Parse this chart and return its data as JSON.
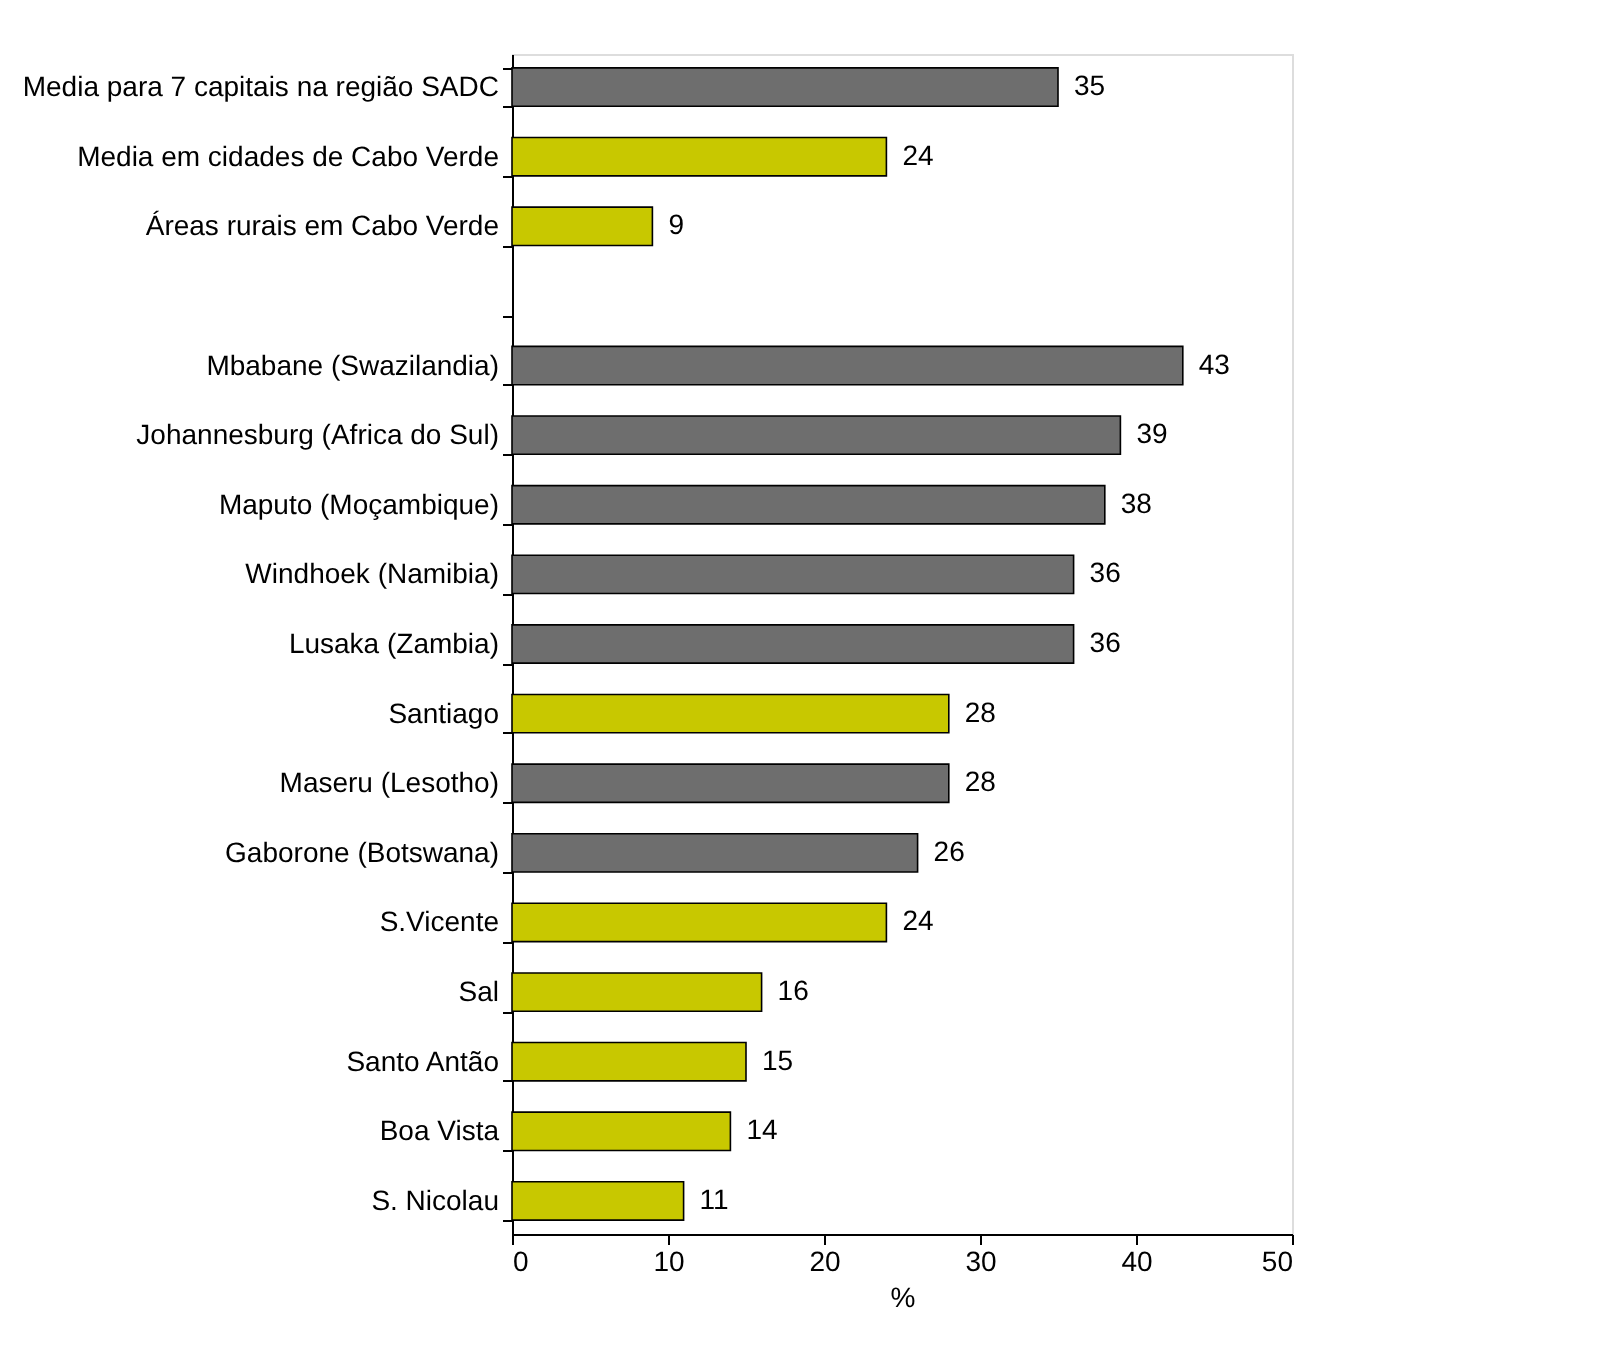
{
  "chart_data": {
    "type": "bar",
    "orientation": "horizontal",
    "xlabel": "%",
    "categories": [
      "Media para 7 capitais na região SADC",
      "Media em cidades de Cabo Verde",
      "Áreas rurais em Cabo Verde",
      null,
      "Mbabane (Swazilandia)",
      "Johannesburg (Africa do Sul)",
      "Maputo (Moçambique)",
      "Windhoek (Namibia)",
      "Lusaka (Zambia)",
      "Santiago",
      "Maseru (Lesotho)",
      "Gaborone (Botswana)",
      "S.Vicente",
      "Sal",
      "Santo Antão",
      "Boa Vista",
      "S. Nicolau"
    ],
    "values": [
      35,
      24,
      9,
      null,
      43,
      39,
      38,
      36,
      36,
      28,
      28,
      26,
      24,
      16,
      15,
      14,
      11
    ],
    "colors": [
      "#6e6e6e",
      "#c8c800",
      "#c8c800",
      null,
      "#6e6e6e",
      "#6e6e6e",
      "#6e6e6e",
      "#6e6e6e",
      "#6e6e6e",
      "#c8c800",
      "#6e6e6e",
      "#6e6e6e",
      "#c8c800",
      "#c8c800",
      "#c8c800",
      "#c8c800",
      "#c8c800"
    ],
    "xlim": [
      0,
      50
    ],
    "xticks": [
      0,
      10,
      20,
      30,
      40,
      50
    ],
    "data_labels": true
  }
}
